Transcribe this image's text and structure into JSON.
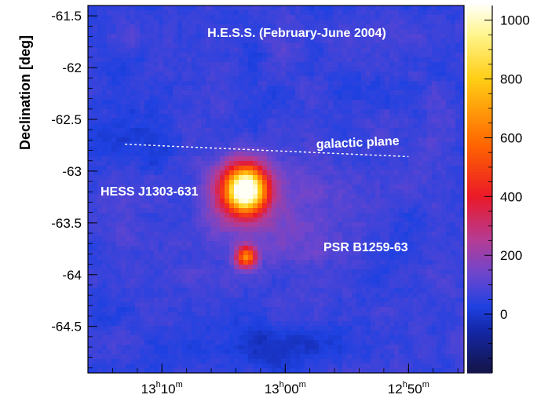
{
  "chart_data": {
    "type": "heatmap",
    "title": "H.E.S.S. (February-June 2004)",
    "ylabel": "Declination [deg]",
    "xlabel": "",
    "x_ticks": [
      {
        "label_main": "13",
        "label_sup1": "h",
        "label_mid": "10",
        "label_sup2": "m",
        "value": 13.1667
      },
      {
        "label_main": "13",
        "label_sup1": "h",
        "label_mid": "00",
        "label_sup2": "m",
        "value": 13.0
      },
      {
        "label_main": "12",
        "label_sup1": "h",
        "label_mid": "50",
        "label_sup2": "m",
        "value": 12.8333
      }
    ],
    "xlim": [
      13.2667,
      12.7583
    ],
    "ylim": [
      -64.95,
      -61.4
    ],
    "y_ticks": [
      "-61.5",
      "-62",
      "-62.5",
      "-63",
      "-63.5",
      "-64",
      "-64.5"
    ],
    "y_tick_values": [
      -61.5,
      -62.0,
      -62.5,
      -63.0,
      -63.5,
      -64.0,
      -64.5
    ],
    "colorbar": {
      "range": [
        -200,
        1050
      ],
      "ticks": [
        "1000",
        "800",
        "600",
        "400",
        "200",
        "0"
      ],
      "tick_values": [
        1000,
        800,
        600,
        400,
        200,
        0
      ]
    },
    "sources": [
      {
        "name": "HESS J1303-631",
        "x": 13.0528,
        "y": -63.18,
        "peak": 1000
      },
      {
        "name": "PSR B1259-63",
        "x": 13.0528,
        "y": -63.83,
        "peak": 620
      }
    ],
    "galactic_plane": {
      "label": "galactic plane",
      "points": [
        [
          13.2167,
          -62.74
        ],
        [
          12.8333,
          -62.86
        ]
      ]
    }
  }
}
